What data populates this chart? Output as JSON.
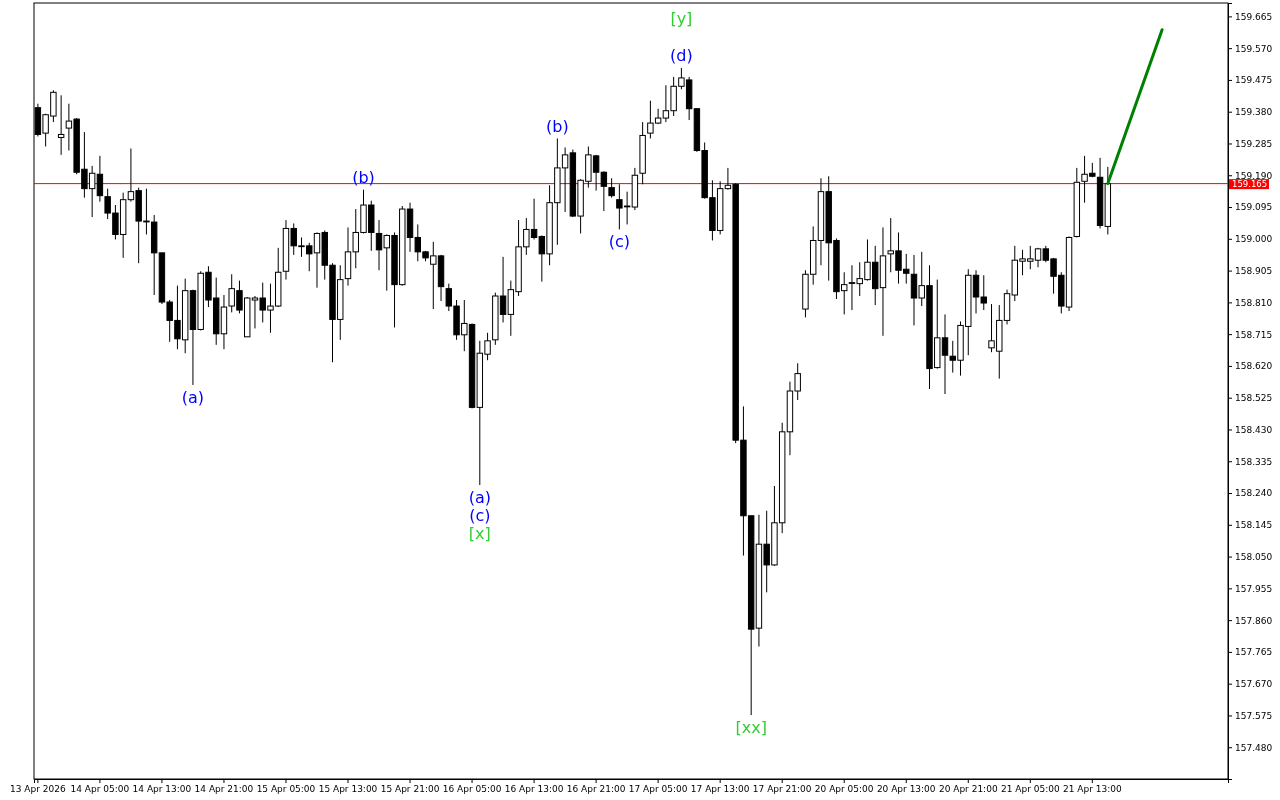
{
  "chart_data": {
    "type": "candlestick",
    "categories": [
      "13 Apr 2026",
      null,
      null,
      null,
      null,
      null,
      null,
      null,
      "14 Apr 05:00",
      null,
      null,
      null,
      null,
      null,
      null,
      null,
      "14 Apr 13:00",
      null,
      null,
      null,
      null,
      null,
      null,
      null,
      "14 Apr 21:00",
      null,
      null,
      null,
      null,
      null,
      null,
      null,
      "15 Apr 05:00",
      null,
      null,
      null,
      null,
      null,
      null,
      null,
      "15 Apr 13:00",
      null,
      null,
      null,
      null,
      null,
      null,
      null,
      "15 Apr 21:00",
      null,
      null,
      null,
      null,
      null,
      null,
      null,
      "16 Apr 05:00",
      null,
      null,
      null,
      null,
      null,
      null,
      null,
      "16 Apr 13:00",
      null,
      null,
      null,
      null,
      null,
      null,
      null,
      "16 Apr 21:00",
      null,
      null,
      null,
      null,
      null,
      null,
      null,
      "17 Apr 05:00",
      null,
      null,
      null,
      null,
      null,
      null,
      null,
      "17 Apr 13:00",
      null,
      null,
      null,
      null,
      null,
      null,
      null,
      "17 Apr 21:00",
      null,
      null,
      null,
      null,
      null,
      null,
      null,
      "20 Apr 05:00",
      null,
      null,
      null,
      null,
      null,
      null,
      null,
      "20 Apr 13:00",
      null,
      null,
      null,
      null,
      null,
      null,
      null,
      "20 Apr 21:00",
      null,
      null,
      null,
      null,
      null,
      null,
      null,
      "21 Apr 05:00",
      null,
      null,
      null,
      null,
      null,
      null,
      null,
      "21 Apr 13:00",
      null,
      null,
      null,
      null,
      null,
      null,
      null,
      null,
      null,
      null,
      null,
      null,
      null,
      null,
      null,
      null,
      null
    ],
    "ohlc": [
      [
        159.392,
        159.404,
        159.306,
        159.312
      ],
      [
        159.316,
        159.374,
        159.276,
        159.371
      ],
      [
        159.367,
        159.444,
        159.349,
        159.438
      ],
      [
        159.303,
        159.429,
        159.251,
        159.312
      ],
      [
        159.331,
        159.404,
        159.264,
        159.352
      ],
      [
        159.358,
        159.361,
        159.193,
        159.199
      ],
      [
        159.208,
        159.319,
        159.123,
        159.15
      ],
      [
        159.15,
        159.218,
        159.065,
        159.196
      ],
      [
        159.193,
        159.248,
        159.111,
        159.129
      ],
      [
        159.126,
        159.15,
        159.059,
        159.077
      ],
      [
        159.077,
        159.101,
        158.998,
        159.013
      ],
      [
        159.013,
        159.138,
        158.943,
        159.117
      ],
      [
        159.117,
        159.27,
        159.111,
        159.141
      ],
      [
        159.144,
        159.153,
        158.927,
        159.053
      ],
      [
        159.053,
        159.15,
        159.013,
        159.053
      ],
      [
        159.05,
        159.071,
        158.832,
        158.958
      ],
      [
        158.958,
        158.958,
        158.805,
        158.811
      ],
      [
        158.811,
        158.817,
        158.692,
        158.756
      ],
      [
        158.756,
        158.86,
        158.67,
        158.701
      ],
      [
        158.698,
        158.881,
        158.658,
        158.845
      ],
      [
        158.845,
        158.848,
        158.563,
        158.729
      ],
      [
        158.729,
        158.903,
        158.726,
        158.897
      ],
      [
        158.9,
        158.918,
        158.796,
        158.817
      ],
      [
        158.823,
        158.884,
        158.683,
        158.716
      ],
      [
        158.716,
        158.832,
        158.67,
        158.796
      ],
      [
        158.799,
        158.894,
        158.78,
        158.851
      ],
      [
        158.845,
        158.875,
        158.777,
        158.787
      ],
      [
        158.707,
        158.826,
        158.707,
        158.823
      ],
      [
        158.817,
        158.829,
        158.732,
        158.823
      ],
      [
        158.823,
        158.869,
        158.75,
        158.787
      ],
      [
        158.787,
        158.866,
        158.719,
        158.799
      ],
      [
        158.799,
        158.973,
        158.796,
        158.9
      ],
      [
        158.903,
        159.056,
        158.878,
        159.031
      ],
      [
        159.031,
        159.046,
        158.952,
        158.979
      ],
      [
        158.979,
        159.004,
        158.946,
        158.979
      ],
      [
        158.979,
        158.988,
        158.903,
        158.955
      ],
      [
        158.958,
        159.019,
        158.854,
        159.016
      ],
      [
        159.019,
        159.025,
        158.878,
        158.921
      ],
      [
        158.921,
        158.927,
        158.631,
        158.759
      ],
      [
        158.759,
        158.921,
        158.698,
        158.878
      ],
      [
        158.881,
        159.034,
        158.86,
        158.961
      ],
      [
        158.961,
        159.089,
        158.912,
        159.019
      ],
      [
        159.019,
        159.147,
        159.016,
        159.101
      ],
      [
        159.101,
        159.114,
        158.964,
        159.019
      ],
      [
        159.016,
        159.056,
        158.906,
        158.967
      ],
      [
        158.973,
        159.013,
        158.845,
        159.01
      ],
      [
        159.01,
        159.019,
        158.735,
        158.863
      ],
      [
        158.863,
        159.098,
        158.86,
        159.089
      ],
      [
        159.089,
        159.108,
        158.961,
        159.004
      ],
      [
        159.004,
        159.043,
        158.933,
        158.961
      ],
      [
        158.961,
        158.964,
        158.933,
        158.943
      ],
      [
        158.924,
        158.991,
        158.79,
        158.949
      ],
      [
        158.949,
        158.952,
        158.814,
        158.857
      ],
      [
        158.851,
        158.866,
        158.784,
        158.799
      ],
      [
        158.799,
        158.817,
        158.698,
        158.713
      ],
      [
        158.713,
        158.817,
        158.664,
        158.747
      ],
      [
        158.744,
        158.747,
        158.493,
        158.496
      ],
      [
        158.496,
        158.695,
        158.264,
        158.658
      ],
      [
        158.655,
        158.719,
        158.637,
        158.695
      ],
      [
        158.698,
        158.839,
        158.683,
        158.829
      ],
      [
        158.829,
        158.946,
        158.75,
        158.774
      ],
      [
        158.774,
        158.875,
        158.71,
        158.848
      ],
      [
        158.842,
        159.056,
        158.829,
        158.976
      ],
      [
        158.976,
        159.062,
        158.952,
        159.028
      ],
      [
        159.028,
        159.12,
        158.998,
        159.004
      ],
      [
        159.007,
        159.01,
        158.872,
        158.955
      ],
      [
        158.955,
        159.16,
        158.921,
        159.108
      ],
      [
        159.108,
        159.3,
        158.982,
        159.212
      ],
      [
        159.212,
        159.273,
        159.08,
        159.251
      ],
      [
        159.257,
        159.267,
        159.065,
        159.068
      ],
      [
        159.068,
        159.178,
        159.016,
        159.175
      ],
      [
        159.172,
        159.276,
        159.153,
        159.251
      ],
      [
        159.248,
        159.251,
        159.144,
        159.199
      ],
      [
        159.199,
        159.202,
        159.083,
        159.157
      ],
      [
        159.153,
        159.181,
        159.123,
        159.129
      ],
      [
        159.117,
        159.163,
        159.028,
        159.092
      ],
      [
        159.098,
        159.141,
        159.043,
        159.098
      ],
      [
        159.095,
        159.212,
        159.086,
        159.19
      ],
      [
        159.196,
        159.349,
        159.163,
        159.309
      ],
      [
        159.316,
        159.413,
        159.3,
        159.346
      ],
      [
        159.346,
        159.389,
        159.343,
        159.361
      ],
      [
        159.361,
        159.459,
        159.349,
        159.383
      ],
      [
        159.383,
        159.484,
        159.367,
        159.456
      ],
      [
        159.456,
        159.511,
        159.447,
        159.481
      ],
      [
        159.475,
        159.484,
        159.355,
        159.389
      ],
      [
        159.389,
        159.389,
        159.26,
        159.264
      ],
      [
        159.264,
        159.288,
        159.12,
        159.123
      ],
      [
        159.123,
        159.175,
        158.995,
        159.025
      ],
      [
        159.025,
        159.172,
        159.013,
        159.15
      ],
      [
        159.15,
        159.212,
        159.147,
        159.16
      ],
      [
        159.163,
        159.166,
        158.389,
        158.398
      ],
      [
        158.398,
        158.499,
        158.053,
        158.172
      ],
      [
        158.172,
        158.172,
        157.576,
        157.833
      ],
      [
        157.836,
        158.175,
        157.781,
        158.087
      ],
      [
        158.087,
        158.187,
        157.943,
        158.025
      ],
      [
        158.025,
        158.261,
        158.022,
        158.151
      ],
      [
        158.151,
        158.45,
        158.12,
        158.423
      ],
      [
        158.423,
        158.573,
        158.353,
        158.545
      ],
      [
        158.545,
        158.628,
        158.518,
        158.597
      ],
      [
        158.79,
        158.906,
        158.765,
        158.894
      ],
      [
        158.894,
        159.037,
        158.863,
        158.995
      ],
      [
        158.995,
        159.181,
        158.921,
        159.141
      ],
      [
        159.141,
        159.187,
        158.875,
        158.988
      ],
      [
        158.995,
        159.001,
        158.82,
        158.842
      ],
      [
        158.845,
        158.9,
        158.774,
        158.863
      ],
      [
        158.869,
        158.921,
        158.787,
        158.869
      ],
      [
        158.866,
        158.93,
        158.829,
        158.881
      ],
      [
        158.878,
        158.998,
        158.875,
        158.93
      ],
      [
        158.93,
        158.979,
        158.802,
        158.851
      ],
      [
        158.854,
        159.034,
        158.71,
        158.949
      ],
      [
        158.955,
        159.062,
        158.9,
        158.964
      ],
      [
        158.964,
        159.019,
        158.866,
        158.906
      ],
      [
        158.909,
        158.955,
        158.866,
        158.897
      ],
      [
        158.894,
        158.952,
        158.741,
        158.823
      ],
      [
        158.823,
        158.961,
        158.799,
        158.86
      ],
      [
        158.86,
        158.921,
        158.551,
        158.612
      ],
      [
        158.615,
        158.878,
        158.612,
        158.704
      ],
      [
        158.704,
        158.774,
        158.536,
        158.652
      ],
      [
        158.649,
        158.695,
        158.6,
        158.637
      ],
      [
        158.637,
        158.753,
        158.591,
        158.741
      ],
      [
        158.738,
        158.909,
        158.652,
        158.891
      ],
      [
        158.891,
        158.906,
        158.777,
        158.826
      ],
      [
        158.826,
        158.891,
        158.787,
        158.808
      ],
      [
        158.674,
        158.805,
        158.661,
        158.695
      ],
      [
        158.664,
        158.802,
        158.582,
        158.756
      ],
      [
        158.756,
        158.848,
        158.744,
        158.836
      ],
      [
        158.832,
        158.979,
        158.814,
        158.936
      ],
      [
        158.933,
        158.967,
        158.891,
        158.94
      ],
      [
        158.933,
        158.979,
        158.909,
        158.94
      ],
      [
        158.936,
        158.973,
        158.915,
        158.97
      ],
      [
        158.97,
        158.979,
        158.93,
        158.936
      ],
      [
        158.94,
        158.943,
        158.836,
        158.888
      ],
      [
        158.891,
        158.9,
        158.777,
        158.799
      ],
      [
        158.796,
        159.007,
        158.784,
        159.004
      ],
      [
        159.007,
        159.212,
        159.004,
        159.169
      ],
      [
        159.172,
        159.248,
        159.108,
        159.193
      ],
      [
        159.196,
        159.227,
        159.184,
        159.187
      ],
      [
        159.184,
        159.242,
        159.031,
        159.04
      ],
      [
        159.037,
        159.215,
        159.013,
        159.165
      ],
      null,
      null,
      null,
      null,
      null,
      null,
      null,
      null,
      null,
      null,
      null,
      null,
      null,
      null,
      null
    ],
    "series": [
      {
        "type": "line",
        "values": [
          null,
          null,
          null,
          null,
          null,
          null,
          null,
          null,
          null,
          null,
          null,
          null,
          null,
          null,
          null,
          null,
          null,
          null,
          null,
          null,
          null,
          null,
          null,
          null,
          null,
          null,
          null,
          null,
          null,
          null,
          null,
          null,
          null,
          null,
          null,
          null,
          null,
          null,
          null,
          null,
          null,
          null,
          null,
          null,
          null,
          null,
          null,
          null,
          null,
          null,
          null,
          null,
          null,
          null,
          null,
          null,
          null,
          null,
          null,
          null,
          null,
          null,
          null,
          null,
          null,
          null,
          null,
          null,
          null,
          null,
          null,
          null,
          null,
          null,
          null,
          null,
          null,
          null,
          null,
          null,
          null,
          null,
          null,
          null,
          null,
          null,
          null,
          null,
          null,
          null,
          null,
          null,
          null,
          null,
          null,
          null,
          null,
          null,
          null,
          null,
          null,
          null,
          null,
          null,
          null,
          null,
          null,
          null,
          null,
          null,
          null,
          null,
          null,
          null,
          null,
          null,
          null,
          null,
          null,
          null,
          null,
          null,
          null,
          null,
          null,
          null,
          null,
          null,
          null,
          null,
          null,
          null,
          null,
          null,
          null,
          null,
          null,
          null,
          159.165,
          null,
          null,
          null,
          null,
          null,
          null,
          159.625,
          null,
          null,
          null,
          null,
          null,
          null,
          null,
          null
        ],
        "color": "#008000"
      }
    ],
    "ylim": [
      157.385,
      159.705
    ],
    "yticks": [
      {
        "value": 157.48,
        "label": "157.480"
      },
      {
        "value": 157.575,
        "label": "157.575"
      },
      {
        "value": 157.67,
        "label": "157.670"
      },
      {
        "value": 157.765,
        "label": "157.765"
      },
      {
        "value": 157.86,
        "label": "157.860"
      },
      {
        "value": 157.955,
        "label": "157.955"
      },
      {
        "value": 158.05,
        "label": "158.050"
      },
      {
        "value": 158.145,
        "label": "158.145"
      },
      {
        "value": 158.24,
        "label": "158.240"
      },
      {
        "value": 158.335,
        "label": "158.335"
      },
      {
        "value": 158.43,
        "label": "158.430"
      },
      {
        "value": 158.525,
        "label": "158.525"
      },
      {
        "value": 158.62,
        "label": "158.620"
      },
      {
        "value": 158.715,
        "label": "158.715"
      },
      {
        "value": 158.81,
        "label": "158.810"
      },
      {
        "value": 158.905,
        "label": "158.905"
      },
      {
        "value": 159.0,
        "label": "159.000"
      },
      {
        "value": 159.095,
        "label": "159.095"
      },
      {
        "value": 159.19,
        "label": "159.190"
      },
      {
        "value": 159.285,
        "label": "159.285"
      },
      {
        "value": 159.38,
        "label": "159.380"
      },
      {
        "value": 159.475,
        "label": "159.475"
      },
      {
        "value": 159.57,
        "label": "159.570"
      },
      {
        "value": 159.665,
        "label": "159.665"
      }
    ],
    "ref_lines": [
      {
        "axis": "y",
        "value": 159.165,
        "label": "159.165",
        "color": "#ff0000"
      }
    ],
    "annotations": [
      {
        "text": "(a)",
        "y": 158.563
      },
      {
        "text": "(b)",
        "y": 159.147
      },
      {
        "text": "(a)",
        "y": 158.264
      },
      {
        "text": "(c)",
        "y": 158.264
      },
      {
        "text": "[x]",
        "y": 158.264
      },
      {
        "text": "(b)",
        "y": 159.3
      },
      {
        "text": "(c)",
        "y": 159.028
      },
      {
        "text": "(d)",
        "y": 159.511
      },
      {
        "text": "[y]",
        "y": 159.511
      },
      {
        "text": "[xx]",
        "y": 157.576
      }
    ],
    "grid": false
  }
}
